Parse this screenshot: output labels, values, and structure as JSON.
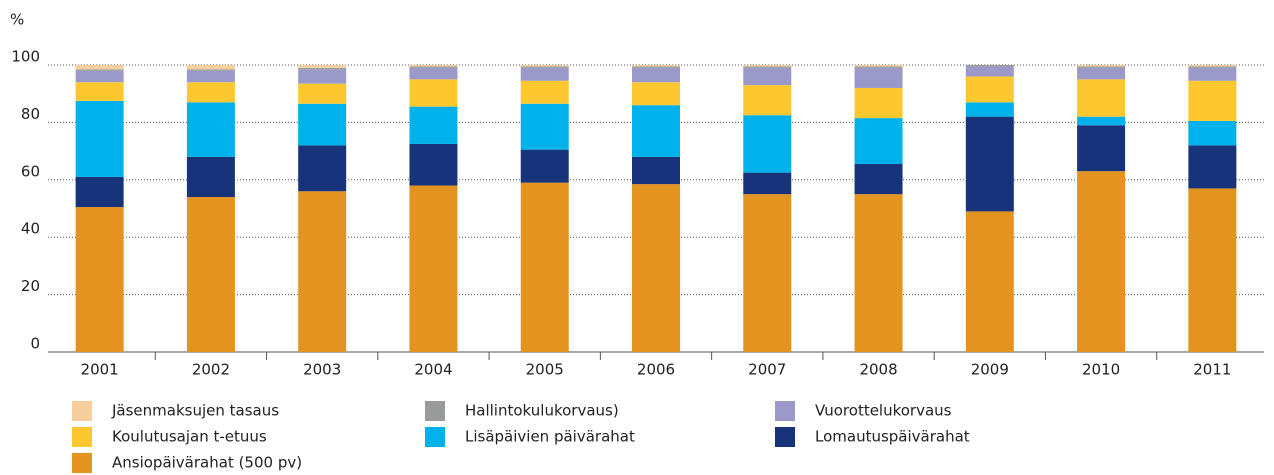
{
  "chart_data": {
    "type": "stacked_bar",
    "y_label": "%",
    "categories": [
      "2001",
      "2002",
      "2003",
      "2004",
      "2005",
      "2006",
      "2007",
      "2008",
      "2009",
      "2010",
      "2011"
    ],
    "series": [
      {
        "name": "Jäsenmaksujen tasaus",
        "color": "#f8cf9c",
        "values": [
          1.5,
          1.5,
          1,
          0.5,
          0.5,
          0.5,
          0.5,
          0.5,
          0,
          0.5,
          0.5
        ]
      },
      {
        "name": "Hallintokulukorvaus)",
        "color": "#999a9c",
        "values": [
          0.5,
          0.5,
          0.5,
          0.5,
          0.5,
          0.5,
          0.5,
          0.5,
          0.5,
          0.5,
          0.5
        ]
      },
      {
        "name": "Vuorottelukorvaus",
        "color": "#9b99c9",
        "values": [
          4,
          4,
          5,
          4,
          4.5,
          5,
          6,
          7,
          3.5,
          4,
          4.5
        ]
      },
      {
        "name": "Koulutusajan t-etuus",
        "color": "#fdc82f",
        "values": [
          6.5,
          7,
          7,
          9.5,
          8,
          8,
          10.5,
          10.5,
          9,
          13,
          14
        ]
      },
      {
        "name": "Lisäpäivien päivärahat",
        "color": "#00b2e9",
        "values": [
          26.5,
          19,
          14.5,
          13,
          16,
          18,
          20,
          16,
          5,
          3,
          8.5
        ]
      },
      {
        "name": "Lomautuspäivärahat",
        "color": "#17347a",
        "values": [
          10.5,
          14,
          16,
          14.5,
          11.5,
          9.5,
          7.5,
          10.5,
          33,
          16,
          15
        ]
      },
      {
        "name": "Ansiopäivärahat (500 pv)",
        "color": "#e39420",
        "values": [
          50.5,
          54,
          56,
          58,
          59,
          58.5,
          55,
          55,
          49,
          63,
          57
        ]
      }
    ],
    "ylim": [
      0,
      100
    ],
    "yticks": [
      0,
      20,
      40,
      60,
      80,
      100
    ],
    "grid": true
  }
}
